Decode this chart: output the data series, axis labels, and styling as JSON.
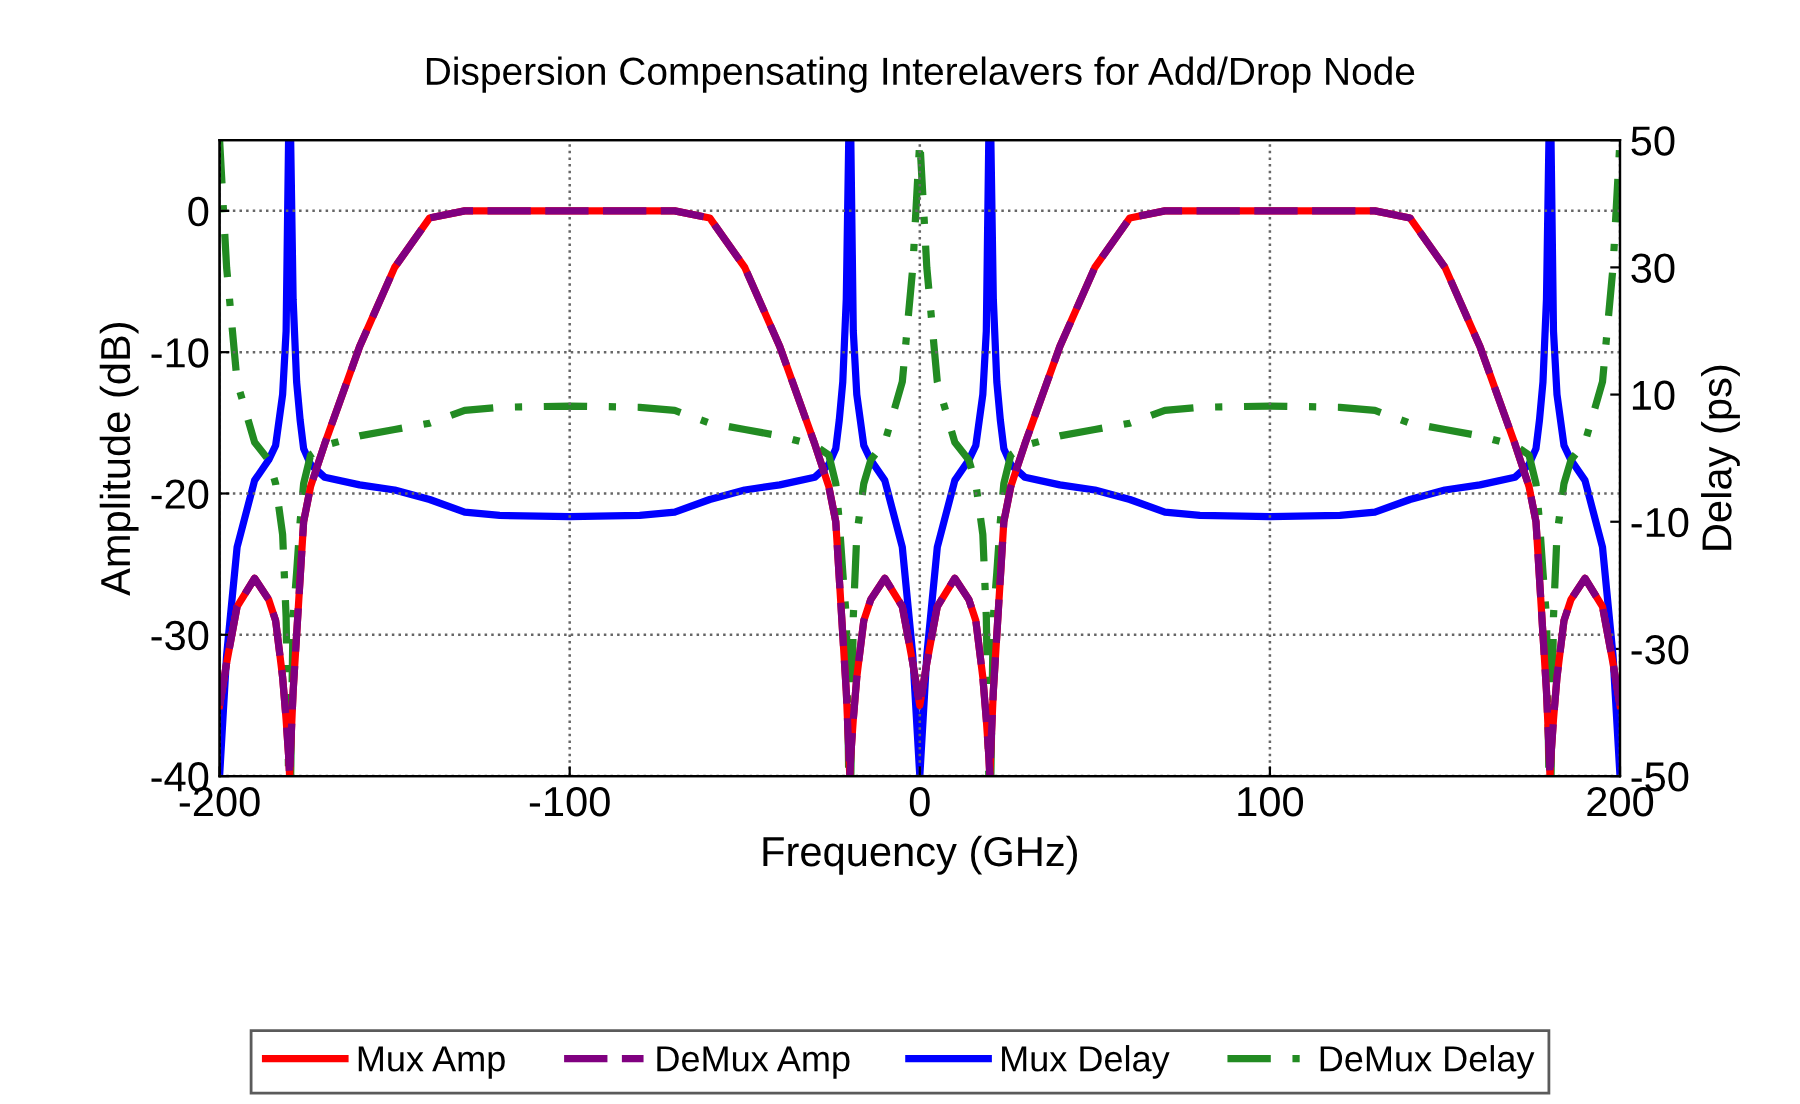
{
  "chart_data": {
    "type": "line",
    "title": "Dispersion Compensating Interelavers for Add/Drop Node",
    "xlabel": "Frequency (GHz)",
    "ylabel": "Amplitude (dB)",
    "y2label": "Delay (ps)",
    "xlim": [
      -200,
      200
    ],
    "xticks": [
      -200,
      -100,
      0,
      100,
      200
    ],
    "ylim": [
      -40,
      5
    ],
    "yticks": [
      0,
      -10,
      -20,
      -30,
      -40
    ],
    "y2lim": [
      -50,
      50
    ],
    "y2ticks": [
      -50,
      -30,
      -10,
      10,
      30,
      50
    ],
    "grid": true,
    "legend": "bottom",
    "marker": "none",
    "series": [
      {
        "name": "Mux Amp",
        "color": "#ff0000",
        "line_style": "solid",
        "x": [
          -200,
          -198,
          -195,
          -190,
          -186,
          -184,
          -182,
          -181,
          -180.3,
          -180,
          -179.7,
          -179,
          -178,
          -177,
          -176,
          -174,
          -170,
          -160,
          -150,
          -140,
          -130,
          -120,
          -100,
          -80,
          -70,
          -60,
          -50,
          -40,
          -30,
          -26,
          -24,
          -23,
          -22,
          -21,
          -20.3,
          -20,
          -19.7,
          -19,
          -18,
          -16,
          -14,
          -10,
          -5,
          -2,
          0,
          2,
          5,
          10,
          14,
          16,
          18,
          19,
          19.7,
          20,
          20.3,
          21,
          22,
          23,
          24,
          26,
          30,
          40,
          50,
          60,
          70,
          80,
          100,
          120,
          130,
          140,
          150,
          160,
          170,
          174,
          176,
          177,
          178,
          179,
          179.7,
          180,
          180.3,
          181,
          182,
          184,
          186,
          190,
          195,
          198,
          200
        ],
        "values": [
          -35,
          -32,
          -28,
          -26,
          -27.5,
          -29,
          -33,
          -36,
          -38.5,
          -40,
          -38,
          -34,
          -30,
          -26,
          -22,
          -19.5,
          -16.5,
          -9.6,
          -4,
          -0.5,
          0,
          0,
          0,
          0,
          0,
          -0.5,
          -4,
          -9.6,
          -16.5,
          -19.5,
          -22,
          -26,
          -30,
          -34,
          -38,
          -40,
          -38.5,
          -36,
          -33,
          -29,
          -27.5,
          -26,
          -28,
          -32,
          -35,
          -32,
          -28,
          -26,
          -27.5,
          -29,
          -33,
          -36,
          -38.5,
          -40,
          -38,
          -34,
          -30,
          -26,
          -22,
          -19.5,
          -16.5,
          -9.6,
          -4,
          -0.5,
          0,
          0,
          0,
          0,
          0,
          -0.5,
          -4,
          -9.6,
          -16.5,
          -19.5,
          -22,
          -26,
          -30,
          -34,
          -38,
          -40,
          -38.5,
          -36,
          -33,
          -29,
          -27.5,
          -26,
          -28,
          -32,
          -35
        ]
      },
      {
        "name": "DeMux Amp",
        "color": "#800080",
        "line_style": "dashed",
        "x": [
          -200,
          -198,
          -195,
          -190,
          -186,
          -184,
          -182,
          -181,
          -180.3,
          -180,
          -179.7,
          -179,
          -178,
          -177,
          -176,
          -174,
          -170,
          -160,
          -150,
          -140,
          -130,
          -120,
          -100,
          -80,
          -70,
          -60,
          -50,
          -40,
          -30,
          -26,
          -24,
          -23,
          -22,
          -21,
          -20.3,
          -20,
          -19.7,
          -19,
          -18,
          -16,
          -14,
          -10,
          -5,
          -2,
          0,
          2,
          5,
          10,
          14,
          16,
          18,
          19,
          19.7,
          20,
          20.3,
          21,
          22,
          23,
          24,
          26,
          30,
          40,
          50,
          60,
          70,
          80,
          100,
          120,
          130,
          140,
          150,
          160,
          170,
          174,
          176,
          177,
          178,
          179,
          179.7,
          180,
          180.3,
          181,
          182,
          184,
          186,
          190,
          195,
          198,
          200
        ],
        "values": [
          -35,
          -32,
          -28,
          -26,
          -27.5,
          -29,
          -33,
          -36,
          -38.5,
          -40,
          -38,
          -34,
          -30,
          -26,
          -22,
          -19.5,
          -16.5,
          -9.6,
          -4,
          -0.5,
          0,
          0,
          0,
          0,
          0,
          -0.5,
          -4,
          -9.6,
          -16.5,
          -19.5,
          -22,
          -26,
          -30,
          -34,
          -38,
          -40,
          -38.5,
          -36,
          -33,
          -29,
          -27.5,
          -26,
          -28,
          -32,
          -35,
          -32,
          -28,
          -26,
          -27.5,
          -29,
          -33,
          -36,
          -38.5,
          -40,
          -38,
          -34,
          -30,
          -26,
          -22,
          -19.5,
          -16.5,
          -9.6,
          -4,
          -0.5,
          0,
          0,
          0,
          0,
          0,
          -0.5,
          -4,
          -9.6,
          -16.5,
          -19.5,
          -22,
          -26,
          -30,
          -34,
          -38,
          -40,
          -38.5,
          -36,
          -33,
          -29,
          -27.5,
          -26,
          -28,
          -32,
          -35
        ]
      },
      {
        "name": "Mux Delay",
        "color": "#0000ff",
        "line_style": "solid",
        "axis": "y2",
        "x": [
          -200,
          -198,
          -195,
          -190,
          -186,
          -184,
          -182,
          -181,
          -180.3,
          -180,
          -179.7,
          -179,
          -178,
          -177,
          -176,
          -174,
          -170,
          -160,
          -150,
          -140,
          -130,
          -120,
          -100,
          -80,
          -70,
          -60,
          -50,
          -40,
          -30,
          -26,
          -24,
          -23,
          -22,
          -21,
          -20.3,
          -20,
          -19.7,
          -19,
          -18,
          -16,
          -14,
          -10,
          -5,
          -2,
          0,
          2,
          5,
          10,
          14,
          16,
          18,
          19,
          19.7,
          20,
          20.3,
          21,
          22,
          23,
          24,
          26,
          30,
          40,
          50,
          60,
          70,
          80,
          100,
          120,
          130,
          140,
          150,
          160,
          170,
          174,
          176,
          177,
          178,
          179,
          179.7,
          180,
          180.3,
          181,
          182,
          184,
          186,
          190,
          195,
          198,
          200
        ],
        "values": [
          -50,
          -31,
          -14,
          -3.5,
          -0.3,
          2,
          10,
          20,
          50,
          null,
          50,
          25,
          12,
          6,
          1.5,
          -1,
          -3,
          -4.2,
          -5,
          -6.5,
          -8.5,
          -9,
          -9.2,
          -9,
          -8.5,
          -6.5,
          -5,
          -4.2,
          -3,
          -1,
          1.5,
          6,
          12,
          25,
          50,
          null,
          50,
          20,
          10,
          2,
          -0.3,
          -3.5,
          -14,
          -31,
          -50,
          -31,
          -14,
          -3.5,
          -0.3,
          2,
          10,
          20,
          50,
          null,
          50,
          25,
          12,
          6,
          1.5,
          -1,
          -3,
          -4.2,
          -5,
          -6.5,
          -8.5,
          -9,
          -9.2,
          -9,
          -8.5,
          -6.5,
          -5,
          -4.2,
          -3,
          -1,
          1.5,
          6,
          12,
          25,
          50,
          null,
          50,
          20,
          10,
          2,
          -0.3,
          -3.5,
          -14,
          -31,
          -50
        ]
      },
      {
        "name": "DeMux Delay",
        "color": "#228b22",
        "line_style": "dashdot",
        "axis": "y2",
        "x": [
          -200,
          -198,
          -195,
          -190,
          -186,
          -184,
          -182,
          -181,
          -180.3,
          -180,
          -179.7,
          -179,
          -178,
          -177,
          -176,
          -174,
          -170,
          -160,
          -150,
          -140,
          -130,
          -120,
          -100,
          -80,
          -70,
          -60,
          -50,
          -40,
          -30,
          -26,
          -24,
          -23,
          -22,
          -21,
          -20.3,
          -20,
          -19.7,
          -19,
          -18,
          -16,
          -14,
          -10,
          -5,
          -2,
          0,
          2,
          5,
          10,
          14,
          16,
          18,
          19,
          19.7,
          20,
          20.3,
          21,
          22,
          23,
          24,
          26,
          30,
          40,
          50,
          60,
          70,
          80,
          100,
          120,
          130,
          140,
          150,
          160,
          170,
          174,
          176,
          177,
          178,
          179,
          179.7,
          180,
          180.3,
          181,
          182,
          184,
          186,
          190,
          195,
          198,
          200
        ],
        "values": [
          50,
          30,
          12,
          2.5,
          -0.3,
          -4,
          -12,
          -25,
          -50,
          null,
          -50,
          -25,
          -18,
          -10,
          -4,
          0.5,
          2,
          3.5,
          4.5,
          5.5,
          7.5,
          8,
          8.2,
          8,
          7.5,
          5.5,
          4.5,
          3.5,
          2,
          0.5,
          -4,
          -10,
          -18,
          -25,
          -50,
          null,
          -50,
          -25,
          -12,
          -4,
          -0.3,
          2.5,
          12,
          30,
          50,
          30,
          12,
          2.5,
          -0.3,
          -4,
          -12,
          -25,
          -50,
          null,
          -50,
          -25,
          -18,
          -10,
          -4,
          0.5,
          2,
          3.5,
          4.5,
          5.5,
          7.5,
          8,
          8.2,
          8,
          7.5,
          5.5,
          4.5,
          3.5,
          2,
          0.5,
          -4,
          -10,
          -18,
          -25,
          -50,
          null,
          -50,
          -25,
          -12,
          -4,
          -0.3,
          2.5,
          12,
          30,
          50
        ]
      }
    ]
  }
}
